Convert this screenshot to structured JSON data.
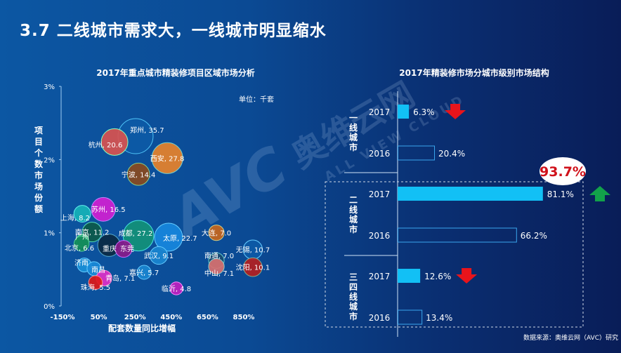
{
  "page_title": "3.7 二线城市需求大，一线城市明显缩水",
  "watermark": {
    "brand": "AVC 奥维云网",
    "sub": "ALL VIEW CLOUD"
  },
  "source": "数据来源：奥维云网（AVC）研究",
  "colors": {
    "bar_fill": "#12c0f5",
    "bar_outline": "#3aa6ee",
    "down_arrow": "#e8141b",
    "up_arrow": "#12a14a",
    "highlight_text": "#d0121b"
  },
  "chart_data": [
    {
      "type": "scatter",
      "subtype": "bubble",
      "title": "2017年重点城市精装修项目区域市场分析",
      "unit_note": "单位：千套",
      "xlabel": "配套数量同比增幅",
      "ylabel": "项目个数市场份额",
      "xlim": [
        -150,
        1050
      ],
      "ylim": [
        0,
        3
      ],
      "xticks": [
        "-150%",
        "50%",
        "250%",
        "450%",
        "650%",
        "850%"
      ],
      "xtick_values": [
        -150,
        50,
        250,
        450,
        650,
        850
      ],
      "yticks": [
        "0%",
        "1%",
        "2%",
        "3%"
      ],
      "ytick_values": [
        0,
        1,
        2,
        3
      ],
      "points": [
        {
          "label": "郑州, 35.7",
          "x": 253,
          "y": 2.32,
          "size": 35.7,
          "color": "#0d5aa6",
          "stroke": "#4fc3f7"
        },
        {
          "label": "杭州, 20.6",
          "x": 137,
          "y": 2.24,
          "size": 20.6,
          "color": "#d9534f",
          "stroke": "#8fb"
        },
        {
          "label": "西安, 27.8",
          "x": 428,
          "y": 2.02,
          "size": 27.8,
          "color": "#e8822a",
          "stroke": "#7cc"
        },
        {
          "label": "宁波, 14.4",
          "x": 269,
          "y": 1.8,
          "size": 14.4,
          "color": "#8a4a1e",
          "stroke": "#8c8"
        },
        {
          "label": "苏州, 16.5",
          "x": 75,
          "y": 1.32,
          "size": 16.5,
          "color": "#d21fd2",
          "stroke": "#b8f"
        },
        {
          "label": "上海, 8.2",
          "x": -41,
          "y": 1.26,
          "size": 8.2,
          "color": "#17b3b8",
          "stroke": "#6ee"
        },
        {
          "label": "南京, 11.2",
          "x": 13,
          "y": 1.01,
          "size": 11.2,
          "color": "#0e5a4a",
          "stroke": "#5db"
        },
        {
          "label": "成都, 27.2",
          "x": 269,
          "y": 0.96,
          "size": 27.2,
          "color": "#139178",
          "stroke": "#4dd"
        },
        {
          "label": "太原, 22.7",
          "x": 435,
          "y": 0.94,
          "size": 22.7,
          "color": "#1787dd",
          "stroke": "#6cf"
        },
        {
          "label": "广州",
          "x": -41,
          "y": 0.89,
          "size": 4.6,
          "color": "#16a36c",
          "stroke": "#6e9"
        },
        {
          "label": "北京, 6.6",
          "x": -45,
          "y": 0.85,
          "size": 6.6,
          "color": "#138a5a",
          "stroke": "#5c9"
        },
        {
          "label": "重庆",
          "x": 106,
          "y": 0.83,
          "size": 14.6,
          "color": "#0b2a44",
          "stroke": "#5ac"
        },
        {
          "label": "东莞",
          "x": 187,
          "y": 0.78,
          "size": 8.2,
          "color": "#8a1a8a",
          "stroke": "#c6f"
        },
        {
          "label": "武汉, 9.1",
          "x": 381,
          "y": 0.69,
          "size": 9.1,
          "color": "#1a86d0",
          "stroke": "#6cf"
        },
        {
          "label": "大连, 7.0",
          "x": 699,
          "y": 1.0,
          "size": 7.0,
          "color": "#c9661b",
          "stroke": "#cc8"
        },
        {
          "label": "无锡, 10.7",
          "x": 900,
          "y": 0.77,
          "size": 10.7,
          "color": "#0d5aa6",
          "stroke": "#6cf"
        },
        {
          "label": "南通, 7.0",
          "x": 699,
          "y": 0.62,
          "size": 7.0,
          "color": "#1a4a70",
          "stroke": "#6cc"
        },
        {
          "label": "中山, 7.1",
          "x": 699,
          "y": 0.54,
          "size": 7.1,
          "color": "#d87070",
          "stroke": "#8cc"
        },
        {
          "label": "沈阳, 10.1",
          "x": 900,
          "y": 0.53,
          "size": 10.1,
          "color": "#b42020",
          "stroke": "#8a8"
        },
        {
          "label": "济南",
          "x": -30,
          "y": 0.56,
          "size": 5.7,
          "color": "#1a90d8",
          "stroke": "#6cf"
        },
        {
          "label": "南昌",
          "x": 24,
          "y": 0.51,
          "size": 5.7,
          "color": "#1a8ad8",
          "stroke": "#6cf"
        },
        {
          "label": "青岛, 7.1",
          "x": 79,
          "y": 0.38,
          "size": 7.1,
          "color": "#e030c8",
          "stroke": "#f8c"
        },
        {
          "label": "嘉兴, 5.7",
          "x": 300,
          "y": 0.46,
          "size": 5.7,
          "color": "#1a86d0",
          "stroke": "#6cf"
        },
        {
          "label": "珠海, 5.5",
          "x": 32,
          "y": 0.32,
          "size": 5.5,
          "color": "#e01818",
          "stroke": "#f88"
        },
        {
          "label": "临沂, 4.8",
          "x": 478,
          "y": 0.24,
          "size": 4.8,
          "color": "#c020c0",
          "stroke": "#f8f"
        }
      ]
    },
    {
      "type": "bar",
      "orientation": "horizontal",
      "title": "2017年精装修市场分城市级别市场结构",
      "groups": [
        {
          "name": "一线城市",
          "bars": [
            {
              "year": "2017",
              "value": 6.3,
              "label": "6.3%",
              "trend": "down"
            },
            {
              "year": "2016",
              "value": 20.4,
              "label": "20.4%"
            }
          ]
        },
        {
          "name": "二线城市",
          "bars": [
            {
              "year": "2017",
              "value": 81.1,
              "label": "81.1%",
              "trend": "up"
            },
            {
              "year": "2016",
              "value": 66.2,
              "label": "66.2%"
            }
          ]
        },
        {
          "name": "三四线城市",
          "bars": [
            {
              "year": "2017",
              "value": 12.6,
              "label": "12.6%",
              "trend": "down"
            },
            {
              "year": "2016",
              "value": 13.4,
              "label": "13.4%"
            }
          ]
        }
      ],
      "callout": "93.7%"
    }
  ]
}
